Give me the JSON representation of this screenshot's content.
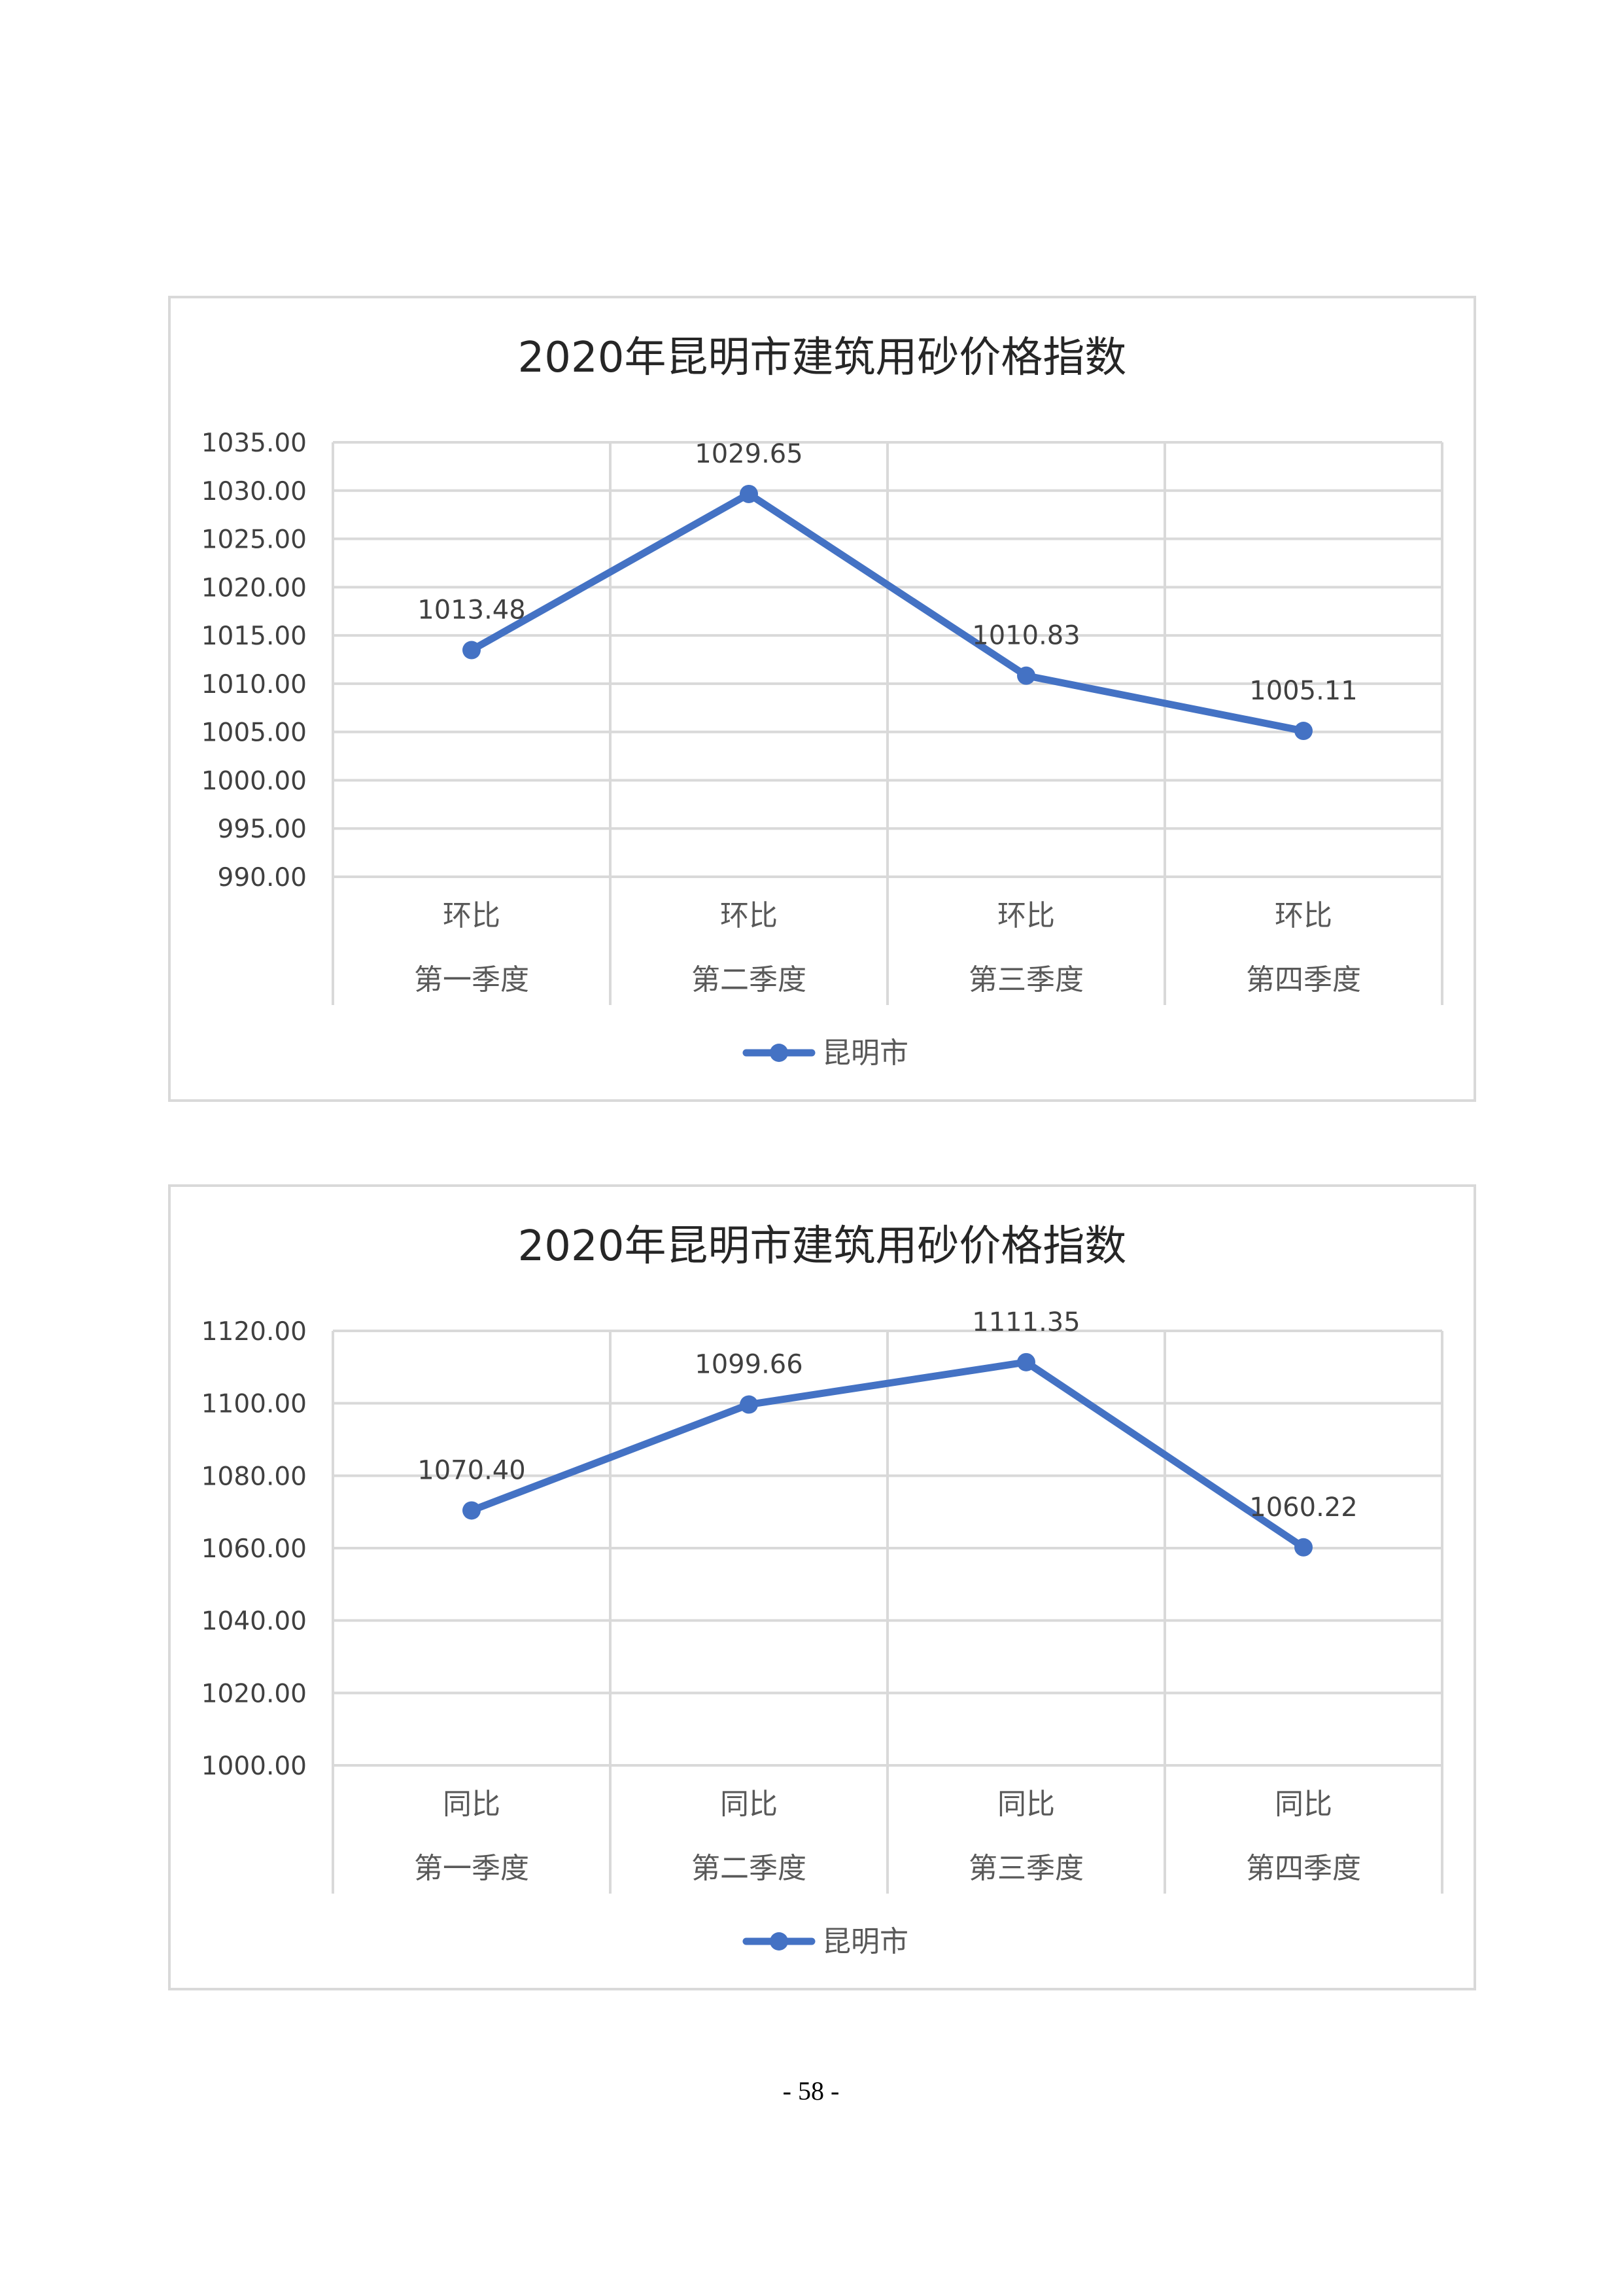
{
  "page_number": "- 58 -",
  "chart_data": [
    {
      "type": "line",
      "title": "2020年昆明市建筑用砂价格指数",
      "categories": [
        [
          "环比",
          "第一季度"
        ],
        [
          "环比",
          "第二季度"
        ],
        [
          "环比",
          "第三季度"
        ],
        [
          "环比",
          "第四季度"
        ]
      ],
      "series": [
        {
          "name": "昆明市",
          "values": [
            1013.48,
            1029.65,
            1010.83,
            1005.11
          ],
          "color": "#4472c4"
        }
      ],
      "data_labels": [
        "1013.48",
        "1029.65",
        "1010.83",
        "1005.11"
      ],
      "ylim": [
        990,
        1035
      ],
      "yticks": [
        1035,
        1030,
        1025,
        1020,
        1015,
        1010,
        1005,
        1000,
        995,
        990
      ],
      "ytick_labels": [
        "1035.00",
        "1030.00",
        "1025.00",
        "1020.00",
        "1015.00",
        "1010.00",
        "1005.00",
        "1000.00",
        "995.00",
        "990.00"
      ],
      "grid": true,
      "legend": "bottom"
    },
    {
      "type": "line",
      "title": "2020年昆明市建筑用砂价格指数",
      "categories": [
        [
          "同比",
          "第一季度"
        ],
        [
          "同比",
          "第二季度"
        ],
        [
          "同比",
          "第三季度"
        ],
        [
          "同比",
          "第四季度"
        ]
      ],
      "series": [
        {
          "name": "昆明市",
          "values": [
            1070.4,
            1099.66,
            1111.35,
            1060.22
          ],
          "color": "#4472c4"
        }
      ],
      "data_labels": [
        "1070.40",
        "1099.66",
        "1111.35",
        "1060.22"
      ],
      "ylim": [
        1000,
        1120
      ],
      "yticks": [
        1120,
        1100,
        1080,
        1060,
        1040,
        1020,
        1000
      ],
      "ytick_labels": [
        "1120.00",
        "1100.00",
        "1080.00",
        "1060.00",
        "1040.00",
        "1020.00",
        "1000.00"
      ],
      "grid": true,
      "legend": "bottom"
    }
  ]
}
